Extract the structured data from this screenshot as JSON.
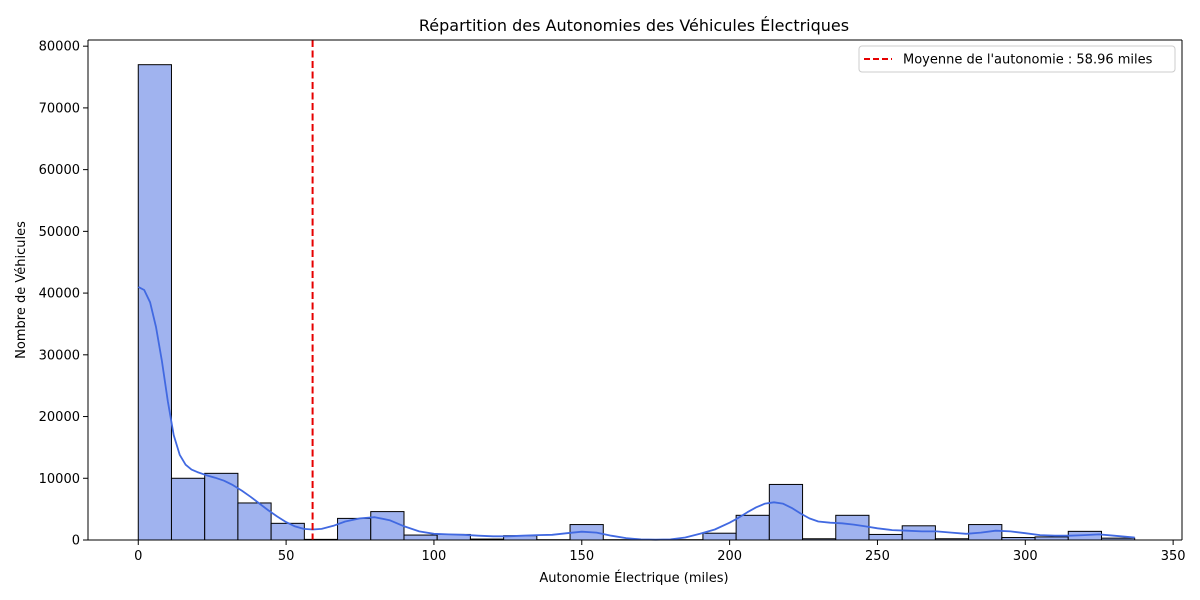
{
  "chart_data": {
    "type": "bar",
    "title": "Répartition des Autonomies des Véhicules Électriques",
    "xlabel": "Autonomie Électrique (miles)",
    "ylabel": "Nombre de Véhicules",
    "xlim": [
      -17,
      353
    ],
    "ylim": [
      0,
      81000
    ],
    "xticks": [
      0,
      50,
      100,
      150,
      200,
      250,
      300,
      350
    ],
    "yticks": [
      0,
      10000,
      20000,
      30000,
      40000,
      50000,
      60000,
      70000,
      80000
    ],
    "grid": false,
    "bin_edges": [
      0,
      11.23,
      22.47,
      33.7,
      44.93,
      56.17,
      67.4,
      78.63,
      89.87,
      101.1,
      112.33,
      123.57,
      134.8,
      146.03,
      157.27,
      168.5,
      179.73,
      190.97,
      202.2,
      213.43,
      224.67,
      235.9,
      247.13,
      258.37,
      269.6,
      280.83,
      292.07,
      303.3,
      314.53,
      325.77,
      337
    ],
    "counts": [
      77000,
      10000,
      10800,
      6000,
      2700,
      100,
      3500,
      4600,
      800,
      900,
      150,
      700,
      50,
      2500,
      50,
      50,
      50,
      1100,
      4000,
      9000,
      200,
      4000,
      900,
      2300,
      200,
      2500,
      400,
      500,
      1400,
      300
    ],
    "bar_color": "#a0b3ef",
    "bar_edge_color": "#000000",
    "kde": {
      "color": "#4169e1",
      "x": [
        0,
        2,
        4,
        6,
        8,
        10,
        12,
        14,
        16,
        18,
        20,
        23,
        26,
        29,
        32,
        35,
        38,
        41,
        44,
        47,
        50,
        53,
        56,
        59,
        62,
        66,
        70,
        75,
        80,
        85,
        90,
        95,
        100,
        105,
        110,
        115,
        120,
        125,
        130,
        135,
        140,
        145,
        150,
        155,
        160,
        165,
        170,
        175,
        180,
        185,
        190,
        195,
        200,
        203,
        206,
        209,
        212,
        215,
        218,
        221,
        224,
        227,
        230,
        234,
        238,
        242,
        246,
        250,
        255,
        260,
        265,
        270,
        275,
        280,
        285,
        290,
        295,
        300,
        305,
        310,
        315,
        320,
        325,
        330,
        337
      ],
      "y": [
        41000,
        40500,
        38500,
        34500,
        29000,
        22500,
        17000,
        13800,
        12200,
        11400,
        11000,
        10500,
        10100,
        9600,
        8900,
        8000,
        7000,
        5900,
        4800,
        3800,
        2900,
        2200,
        1800,
        1700,
        1800,
        2300,
        3000,
        3500,
        3700,
        3200,
        2200,
        1400,
        1000,
        900,
        850,
        700,
        600,
        600,
        700,
        800,
        850,
        1100,
        1350,
        1200,
        700,
        300,
        100,
        50,
        100,
        400,
        1000,
        1700,
        2800,
        3600,
        4500,
        5300,
        5900,
        6100,
        5900,
        5200,
        4300,
        3500,
        3000,
        2800,
        2700,
        2500,
        2200,
        1900,
        1600,
        1500,
        1400,
        1400,
        1200,
        1000,
        1200,
        1500,
        1400,
        1100,
        800,
        700,
        700,
        800,
        900,
        700,
        400
      ]
    },
    "mean_line": {
      "x": 58.96,
      "color": "#e60000",
      "label": "Moyenne de l'autonomie : 58.96 miles"
    },
    "legend_position": "top-right"
  }
}
